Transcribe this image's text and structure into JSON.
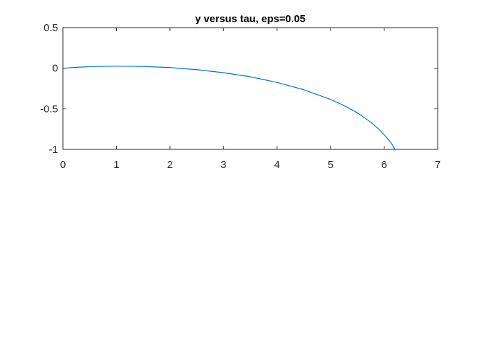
{
  "chart_data": {
    "type": "line",
    "title": "y versus tau, eps=0.05",
    "xlabel": "",
    "ylabel": "",
    "xlim": [
      0,
      7
    ],
    "ylim": [
      -1,
      0.5
    ],
    "xticks": [
      0,
      1,
      2,
      3,
      4,
      5,
      6,
      7
    ],
    "yticks": [
      0.5,
      0,
      -0.5,
      -1
    ],
    "xtick_labels": [
      "0",
      "1",
      "2",
      "3",
      "4",
      "5",
      "6",
      "7"
    ],
    "ytick_labels": [
      "0.5",
      "0",
      "-0.5",
      "-1"
    ],
    "grid": false,
    "box": true,
    "series": [
      {
        "color": "#0072BD",
        "x": [
          0,
          0.25,
          0.5,
          0.75,
          1.0,
          1.25,
          1.5,
          2.0,
          2.5,
          3.0,
          3.5,
          4.0,
          4.5,
          5.0,
          5.25,
          5.5,
          5.75,
          5.9,
          6.0,
          6.1,
          6.15,
          6.18,
          6.2
        ],
        "y": [
          0,
          0.011,
          0.019,
          0.024,
          0.026,
          0.025,
          0.022,
          0.008,
          -0.018,
          -0.055,
          -0.105,
          -0.175,
          -0.265,
          -0.385,
          -0.46,
          -0.55,
          -0.665,
          -0.75,
          -0.82,
          -0.895,
          -0.94,
          -0.975,
          -1.0
        ]
      }
    ]
  }
}
